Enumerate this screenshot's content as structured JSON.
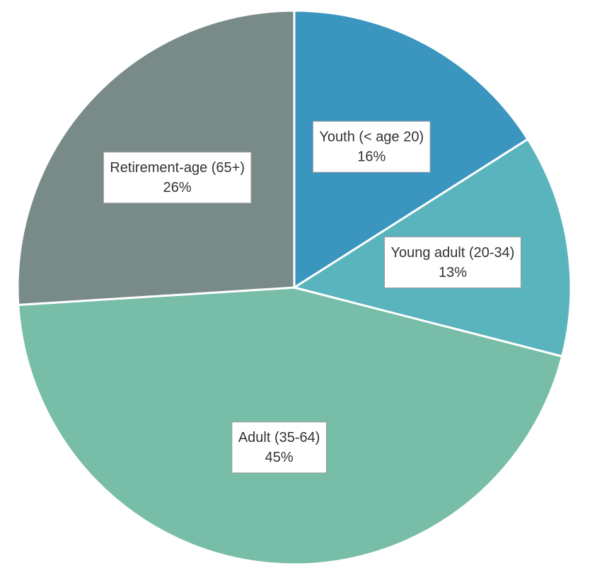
{
  "chart_data": {
    "type": "pie",
    "categories": [
      "Youth (< age 20)",
      "Young adult (20-34)",
      "Adult (35-64)",
      "Retirement-age (65+)"
    ],
    "values": [
      16,
      13,
      45,
      26
    ],
    "value_labels": [
      "16%",
      "13%",
      "45%",
      "26%"
    ],
    "colors": [
      "#3a95bf",
      "#5ab4bd",
      "#77bda7",
      "#798b89"
    ]
  }
}
